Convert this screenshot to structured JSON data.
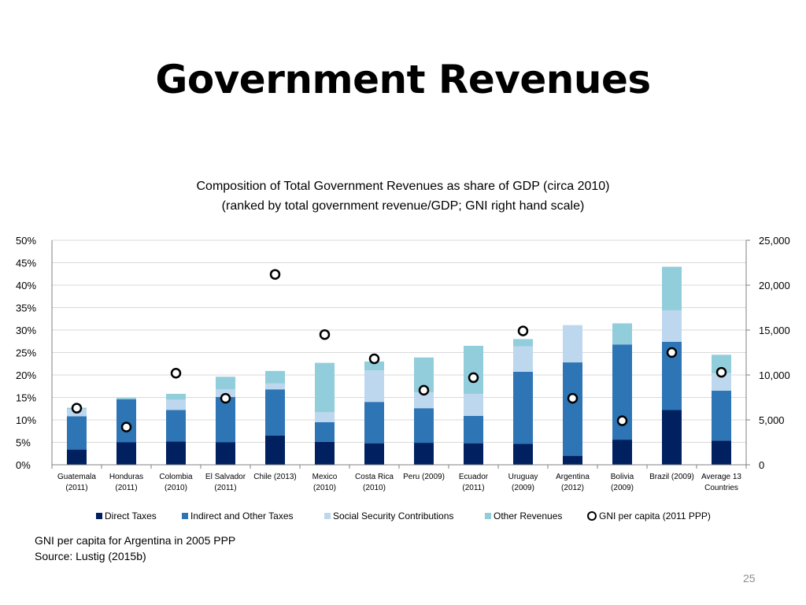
{
  "slide": {
    "title": "Government Revenues",
    "notes": [
      "GNI per capita for Argentina in 2005 PPP",
      "Source: Lustig (2015b)"
    ],
    "page_number": "25"
  },
  "colors": {
    "direct": "#002060",
    "indirect": "#2E75B6",
    "social": "#BDD7EE",
    "other": "#92CDDC",
    "grid": "#D9D9D9",
    "axis": "#808080"
  },
  "chart_data": {
    "type": "bar",
    "stacked": true,
    "title": "Composition of Total Government Revenues as share of GDP (circa 2010)",
    "subtitle": "(ranked by total government revenue/GDP; GNI right hand scale)",
    "y_left": {
      "min": 0,
      "max": 50,
      "step": 5,
      "tick_labels": [
        "0%",
        "5%",
        "10%",
        "15%",
        "20%",
        "25%",
        "30%",
        "35%",
        "40%",
        "45%",
        "50%"
      ]
    },
    "y_right": {
      "min": 0,
      "max": 25000,
      "step": 5000,
      "tick_labels": [
        "0",
        "5,000",
        "10,000",
        "15,000",
        "20,000",
        "25,000"
      ]
    },
    "categories": [
      [
        "Guatemala",
        "(2011)"
      ],
      [
        "Honduras",
        "(2011)"
      ],
      [
        "Colombia",
        "(2010)"
      ],
      [
        "El Salvador",
        "(2011)"
      ],
      [
        "Chile (2013)",
        ""
      ],
      [
        "Mexico",
        "(2010)"
      ],
      [
        "Costa Rica",
        "(2010)"
      ],
      [
        "Peru (2009)",
        ""
      ],
      [
        "Ecuador",
        "(2011)"
      ],
      [
        "Uruguay",
        "(2009)"
      ],
      [
        "Argentina",
        "(2012)"
      ],
      [
        "Bolivia",
        "(2009)"
      ],
      [
        "Brazil (2009)",
        ""
      ],
      [
        "Average 13",
        "Countries"
      ]
    ],
    "series": [
      {
        "name": "Direct Taxes",
        "color_key": "direct",
        "values": [
          3.4,
          5.0,
          5.2,
          5.0,
          6.5,
          5.1,
          4.8,
          4.9,
          4.8,
          4.7,
          2.0,
          5.6,
          12.2,
          5.4
        ]
      },
      {
        "name": "Indirect and Other Taxes",
        "color_key": "indirect",
        "values": [
          7.4,
          9.6,
          7.0,
          10.1,
          10.3,
          4.4,
          9.2,
          7.7,
          6.1,
          16.0,
          20.8,
          21.2,
          15.2,
          11.1
        ]
      },
      {
        "name": "Social Security Contributions",
        "color_key": "social",
        "values": [
          1.6,
          0.0,
          2.3,
          1.7,
          1.3,
          2.2,
          7.0,
          3.5,
          4.9,
          5.7,
          8.3,
          0.0,
          7.0,
          3.9
        ]
      },
      {
        "name": "Other Revenues",
        "color_key": "other",
        "values": [
          0.3,
          0.3,
          1.3,
          2.8,
          2.8,
          11.0,
          2.0,
          7.8,
          10.7,
          1.6,
          0.0,
          4.7,
          9.7,
          4.1
        ]
      }
    ],
    "markers": {
      "name": "GNI per capita (2011 PPP)",
      "values": [
        6300,
        4200,
        10200,
        7400,
        21200,
        14500,
        11800,
        8300,
        9700,
        14900,
        7400,
        4900,
        12500,
        10300
      ]
    }
  }
}
